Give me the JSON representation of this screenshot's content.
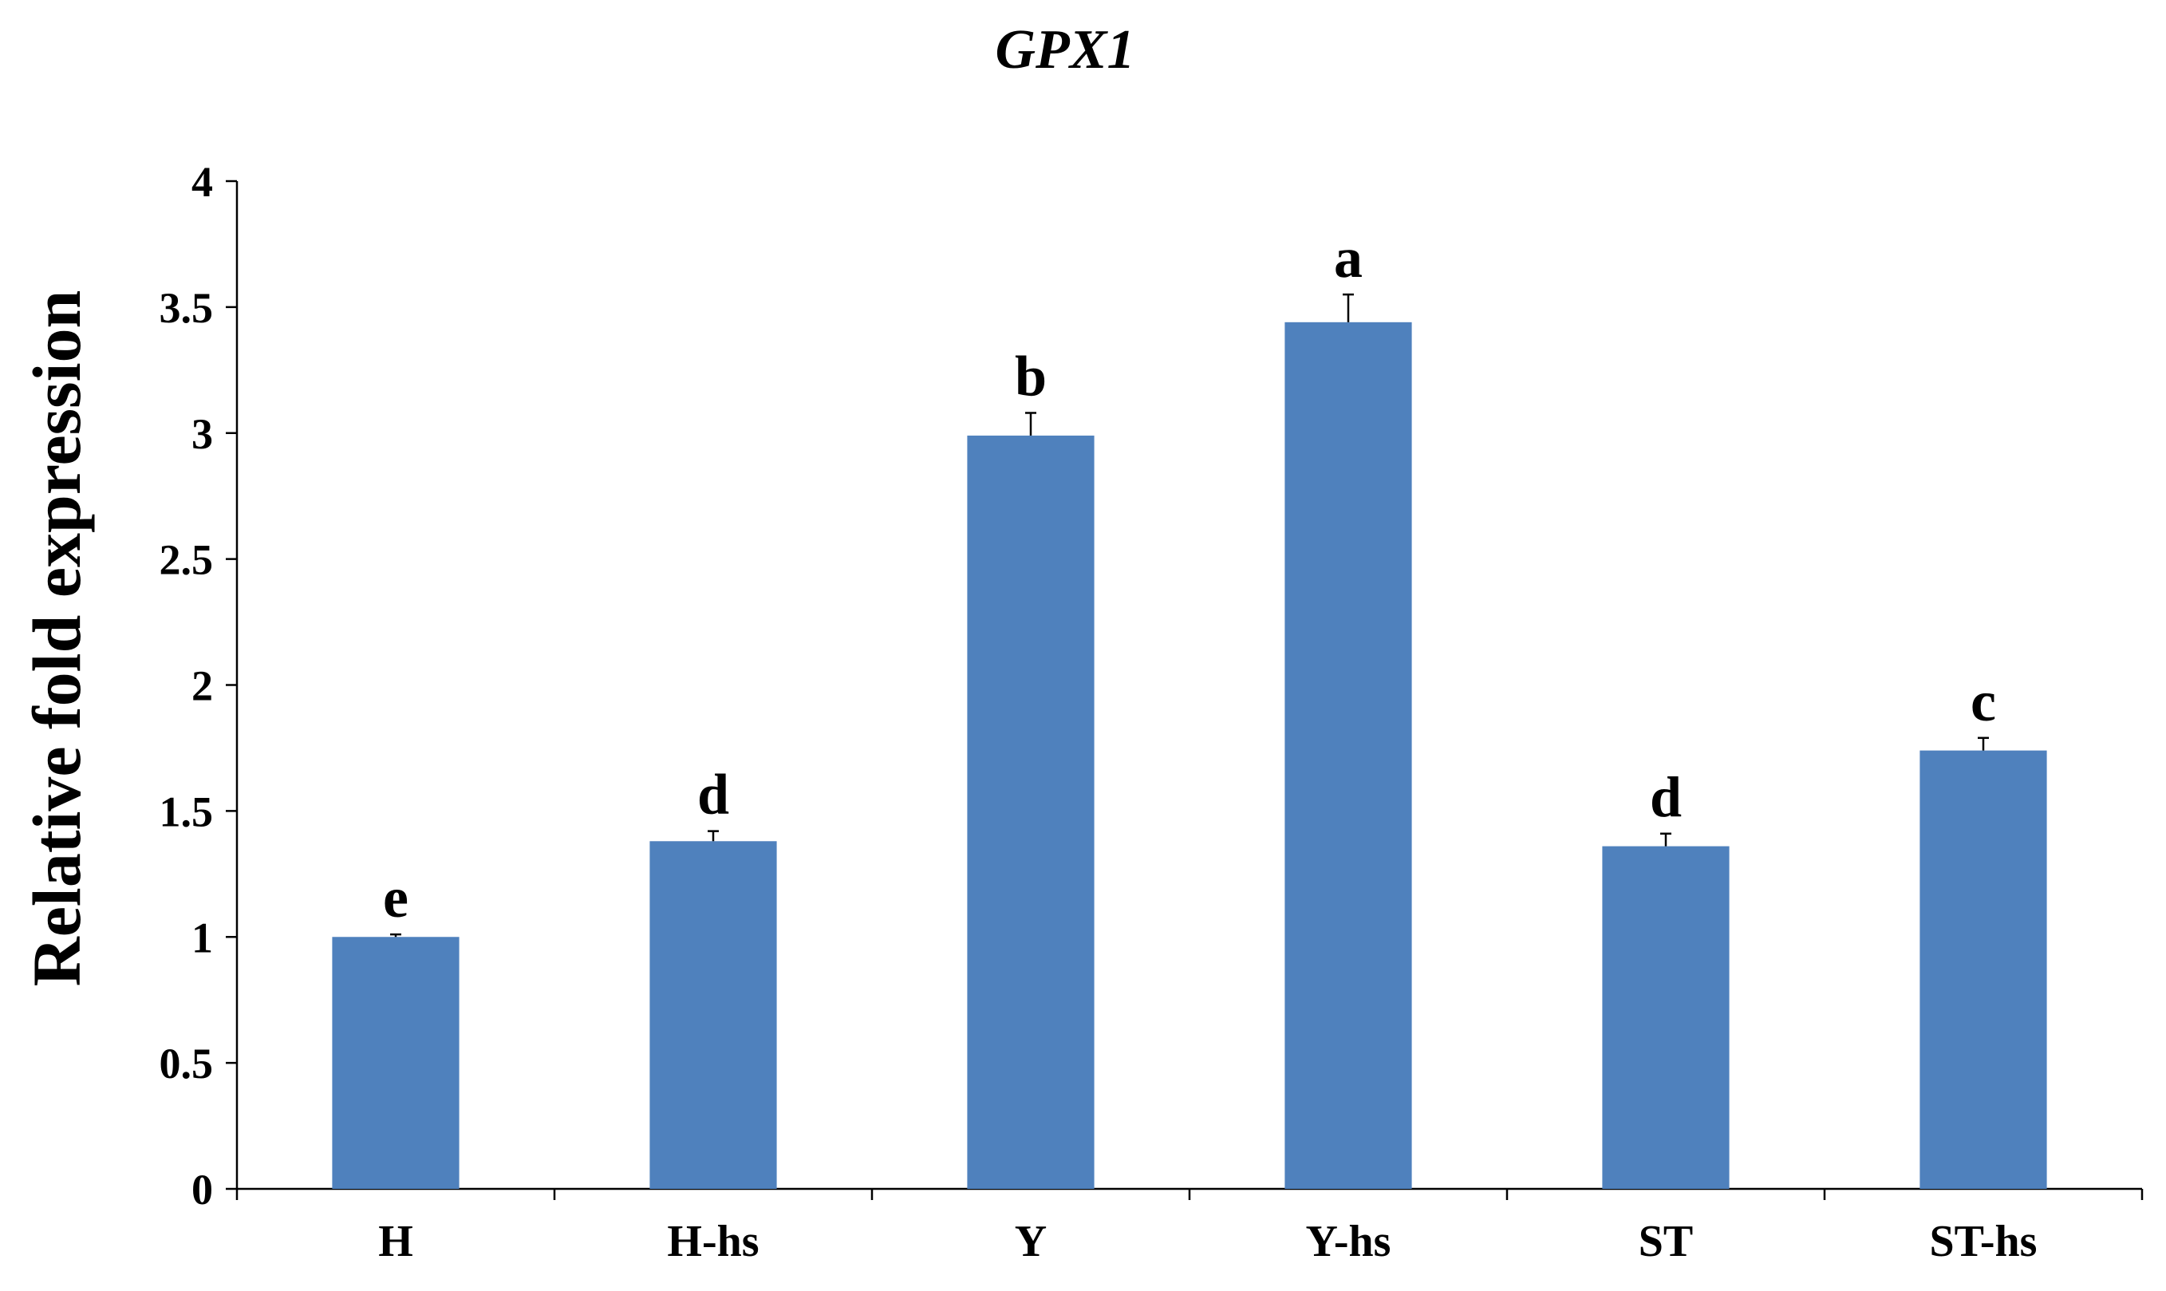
{
  "chart_data": {
    "type": "bar",
    "title": "GPX1",
    "xlabel": "",
    "ylabel": "Relative fold expression",
    "ylim": [
      0,
      4
    ],
    "yticks": [
      "0",
      "0.5",
      "1",
      "1.5",
      "2",
      "2.5",
      "3",
      "3.5",
      "4"
    ],
    "categories": [
      "H",
      "H-hs",
      "Y",
      "Y-hs",
      "ST",
      "ST-hs"
    ],
    "values": [
      1.0,
      1.38,
      2.99,
      3.44,
      1.36,
      1.74
    ],
    "errors": [
      0.01,
      0.04,
      0.09,
      0.11,
      0.05,
      0.05
    ],
    "significance_letters": [
      "e",
      "d",
      "b",
      "a",
      "d",
      "c"
    ],
    "bar_color": "#4f81bd",
    "grid": false,
    "legend": "none"
  }
}
